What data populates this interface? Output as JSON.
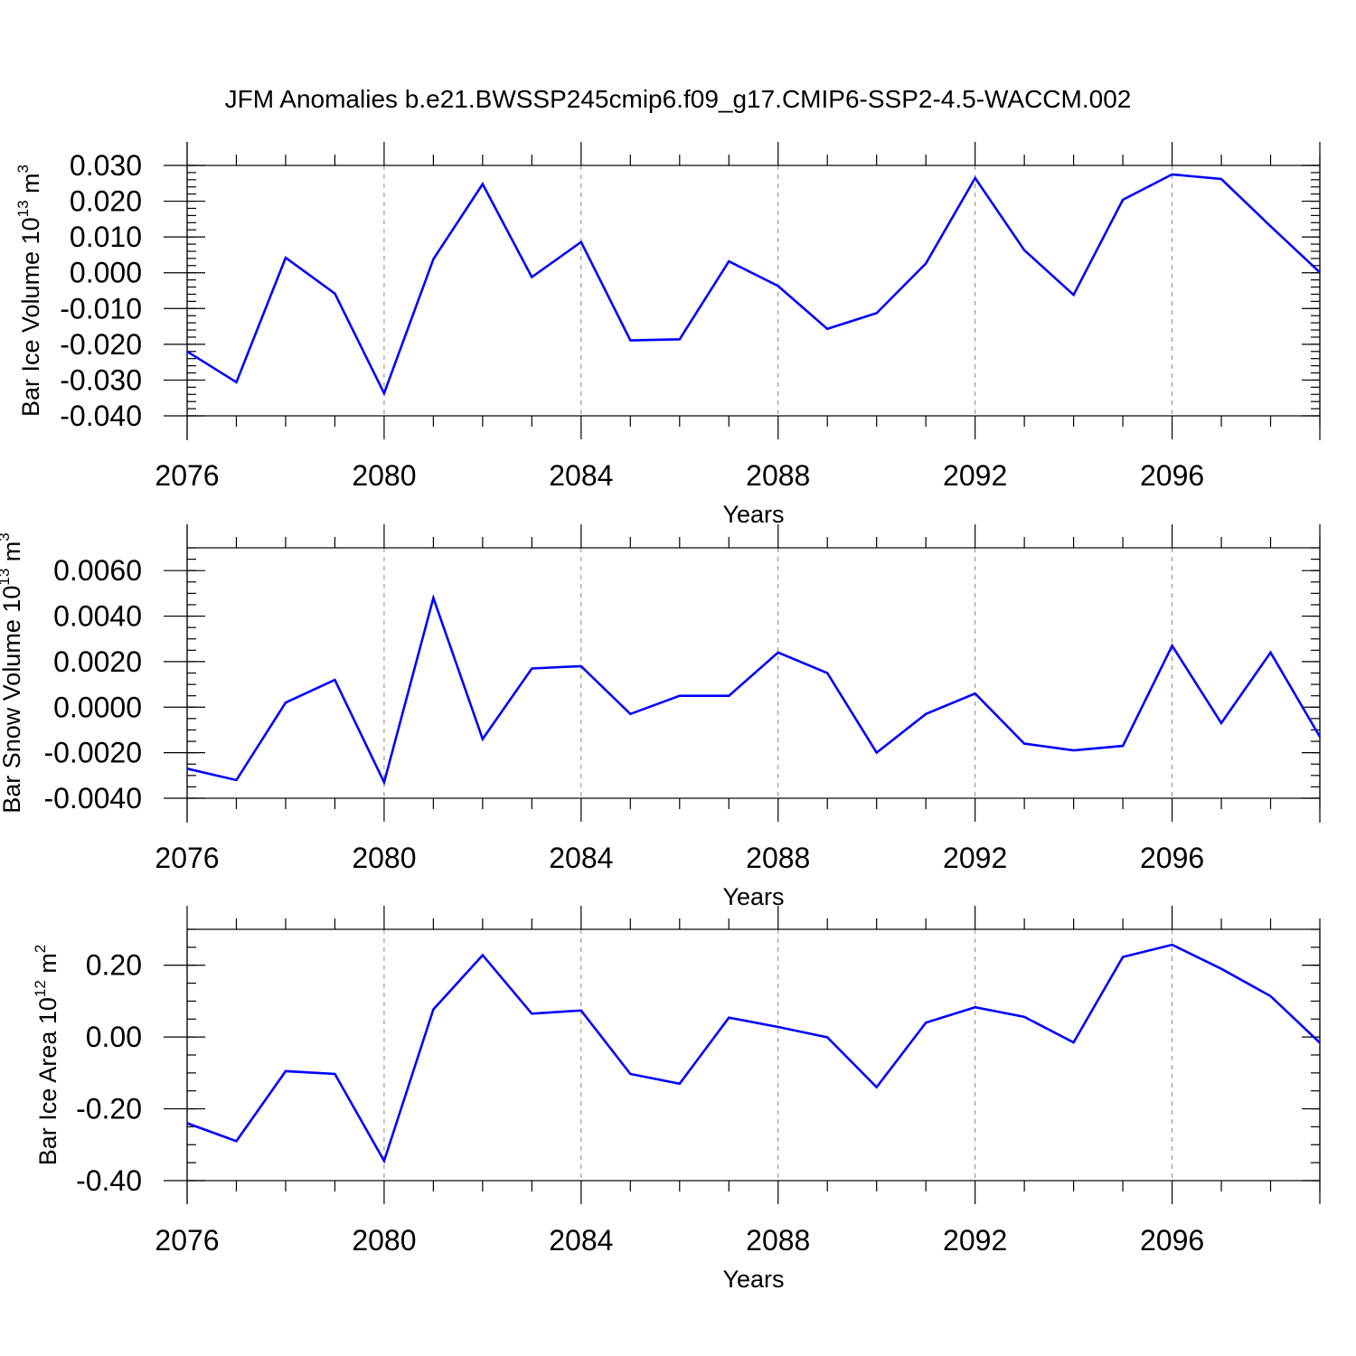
{
  "title": "JFM Anomalies b.e21.BWSSP245cmip6.f09_g17.CMIP6-SSP2-4.5-WACCM.002",
  "colors": {
    "line": "#0000ff",
    "grid": "#888888",
    "axis": "#000000"
  },
  "chart_data": [
    {
      "type": "line",
      "ylabel": "Bar Ice Volume 10",
      "ylabel_exp": "13",
      "ylabel_unit": " m",
      "ylabel_unit_exp": "3",
      "xlabel": "Years",
      "xlim": [
        2076,
        2099
      ],
      "ylim": [
        -0.04,
        0.03
      ],
      "yticks": [
        -0.04,
        -0.03,
        -0.02,
        -0.01,
        0.0,
        0.01,
        0.02,
        0.03
      ],
      "ytick_labels": [
        "-0.040",
        "-0.030",
        "-0.020",
        "-0.010",
        "0.000",
        "0.010",
        "0.020",
        "0.030"
      ],
      "yminor_step": 0.002,
      "xticks": [
        2076,
        2080,
        2084,
        2088,
        2092,
        2096
      ],
      "xtick_labels": [
        "2076",
        "2080",
        "2084",
        "2088",
        "2092",
        "2096"
      ],
      "x": [
        2076,
        2077,
        2078,
        2079,
        2080,
        2081,
        2082,
        2083,
        2084,
        2085,
        2086,
        2087,
        2088,
        2089,
        2090,
        2091,
        2092,
        2093,
        2094,
        2095,
        2096,
        2097,
        2098,
        2099
      ],
      "values": [
        -0.022,
        -0.0306,
        0.0042,
        -0.0058,
        -0.0337,
        0.0038,
        0.0248,
        -0.0012,
        0.0086,
        -0.0189,
        -0.0186,
        0.0032,
        -0.0037,
        -0.0157,
        -0.0113,
        0.0026,
        0.0265,
        0.0063,
        -0.0062,
        0.0204,
        0.0275,
        0.0262,
        0.013,
        0.0001
      ]
    },
    {
      "type": "line",
      "ylabel": "Bar Snow Volume 10",
      "ylabel_exp": "13",
      "ylabel_unit": " m",
      "ylabel_unit_exp": "3",
      "xlabel": "Years",
      "xlim": [
        2076,
        2099
      ],
      "ylim": [
        -0.004,
        0.007
      ],
      "yticks": [
        -0.004,
        -0.002,
        0.0,
        0.002,
        0.004,
        0.006
      ],
      "ytick_labels": [
        "-0.0040",
        "-0.0020",
        "0.0000",
        "0.0020",
        "0.0040",
        "0.0060"
      ],
      "yminor_step": 0.0005,
      "xticks": [
        2076,
        2080,
        2084,
        2088,
        2092,
        2096
      ],
      "xtick_labels": [
        "2076",
        "2080",
        "2084",
        "2088",
        "2092",
        "2096"
      ],
      "x": [
        2076,
        2077,
        2078,
        2079,
        2080,
        2081,
        2082,
        2083,
        2084,
        2085,
        2086,
        2087,
        2088,
        2089,
        2090,
        2091,
        2092,
        2093,
        2094,
        2095,
        2096,
        2097,
        2098,
        2099
      ],
      "values": [
        -0.0027,
        -0.0032,
        0.0002,
        0.0012,
        -0.0033,
        0.0048,
        -0.0014,
        0.0017,
        0.0018,
        -0.0003,
        0.0005,
        0.0005,
        0.0024,
        0.0015,
        -0.002,
        -0.0003,
        0.0006,
        -0.0016,
        -0.0019,
        -0.0017,
        0.0027,
        -0.0007,
        0.0024,
        -0.0013
      ]
    },
    {
      "type": "line",
      "ylabel": "Bar Ice Area 10",
      "ylabel_exp": "12",
      "ylabel_unit": " m",
      "ylabel_unit_exp": "2",
      "xlabel": "Years",
      "xlim": [
        2076,
        2099
      ],
      "ylim": [
        -0.4,
        0.3
      ],
      "yticks": [
        -0.4,
        -0.2,
        0.0,
        0.2
      ],
      "ytick_labels": [
        "-0.40",
        "-0.20",
        "0.00",
        "0.20"
      ],
      "yminor_step": 0.05,
      "xticks": [
        2076,
        2080,
        2084,
        2088,
        2092,
        2096
      ],
      "xtick_labels": [
        "2076",
        "2080",
        "2084",
        "2088",
        "2092",
        "2096"
      ],
      "x": [
        2076,
        2077,
        2078,
        2079,
        2080,
        2081,
        2082,
        2083,
        2084,
        2085,
        2086,
        2087,
        2088,
        2089,
        2090,
        2091,
        2092,
        2093,
        2094,
        2095,
        2096,
        2097,
        2098,
        2099
      ],
      "values": [
        -0.24,
        -0.29,
        -0.095,
        -0.103,
        -0.345,
        0.077,
        0.228,
        0.065,
        0.074,
        -0.103,
        -0.13,
        0.054,
        0.028,
        -0.001,
        -0.14,
        0.04,
        0.083,
        0.056,
        -0.015,
        0.223,
        0.257,
        0.19,
        0.114,
        -0.016
      ]
    }
  ]
}
